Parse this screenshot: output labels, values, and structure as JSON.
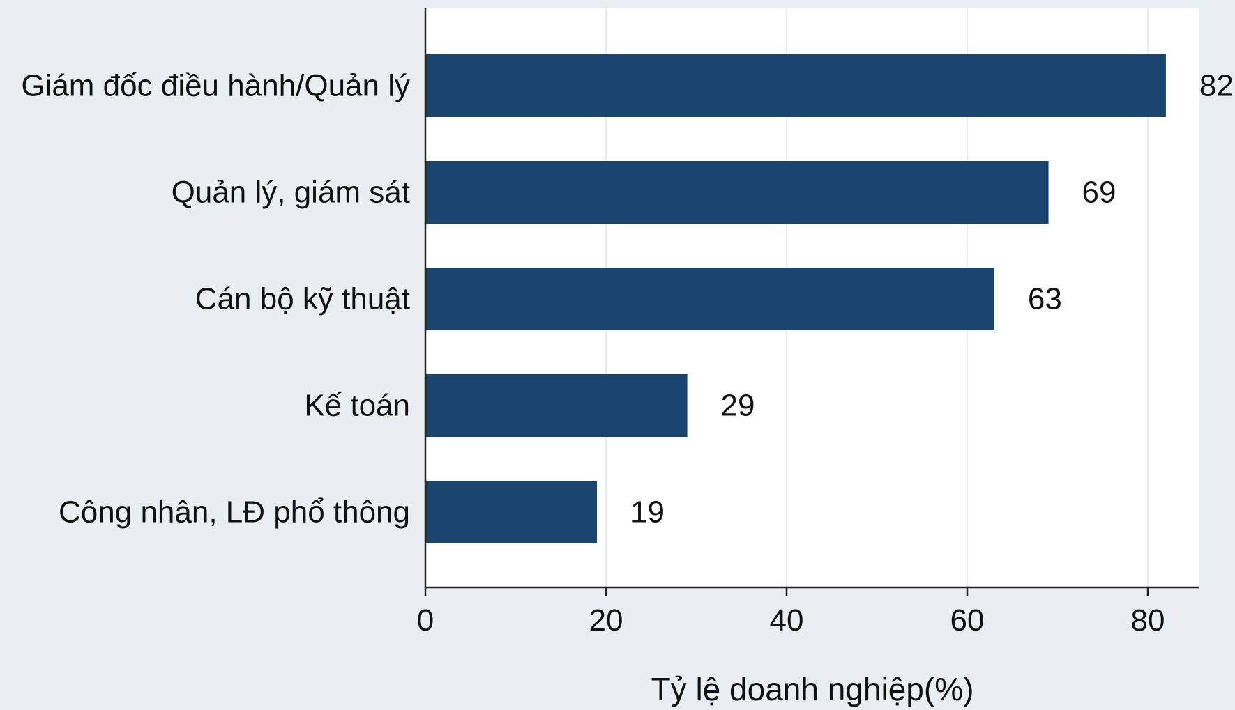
{
  "chart_data": {
    "type": "bar",
    "orientation": "horizontal",
    "categories": [
      "Giám đốc điều hành/Quản lý",
      "Quản lý, giám sát",
      "Cán bộ kỹ thuật",
      "Kế toán",
      "Công nhân, LĐ phổ thông"
    ],
    "values": [
      82,
      69,
      63,
      29,
      19
    ],
    "value_labels": [
      "82",
      "69",
      "63",
      "29",
      "19"
    ],
    "xlabel": "Tỷ lệ doanh nghiệp(%)",
    "xlim": [
      0,
      86
    ],
    "xticks": [
      0,
      20,
      40,
      60,
      80
    ],
    "xtick_labels": [
      "0",
      "20",
      "40",
      "60",
      "80"
    ],
    "grid": true,
    "colors": {
      "bar": "#1b446d",
      "background": "#e8eef2",
      "plot_background": "#ffffff",
      "grid": "#e6ebef"
    }
  }
}
